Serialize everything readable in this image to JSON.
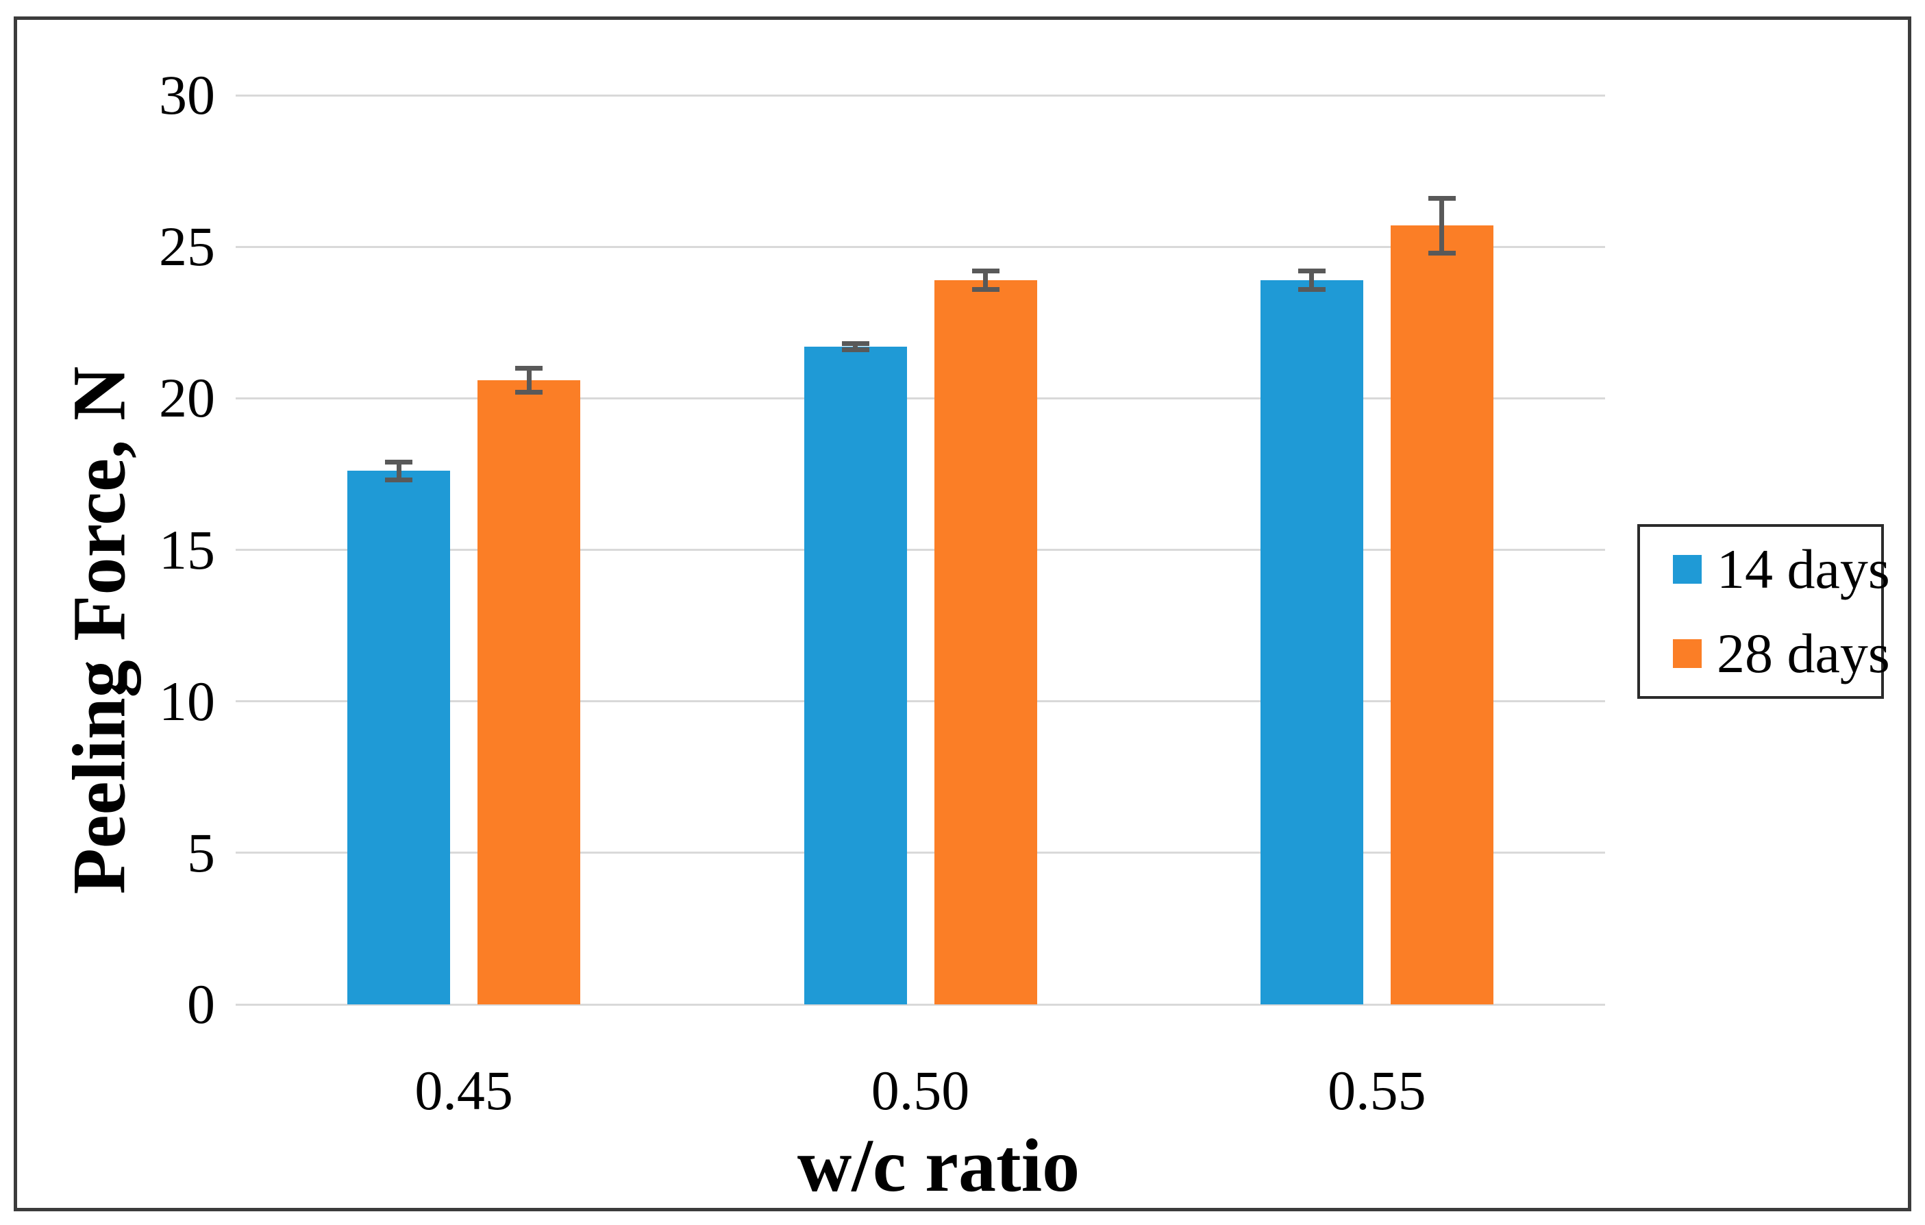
{
  "chart_data": {
    "type": "bar",
    "title": "",
    "categories": [
      "0.45",
      "0.50",
      "0.55"
    ],
    "series": [
      {
        "name": "14 days",
        "color": "#1F9AD6",
        "values": [
          17.6,
          21.7,
          23.9
        ],
        "errors": [
          0.3,
          0.1,
          0.3
        ]
      },
      {
        "name": "28 days",
        "color": "#FB7E26",
        "values": [
          20.6,
          23.9,
          25.7
        ],
        "errors": [
          0.4,
          0.3,
          0.9
        ]
      }
    ],
    "xlabel": "w/c ratio",
    "ylabel": "Peeling Force, N",
    "ylim": [
      0,
      30
    ],
    "ytick_step": 5,
    "yticks": [
      "0",
      "5",
      "10",
      "15",
      "20",
      "25",
      "30"
    ],
    "grid": "horizontal",
    "legend_position": "right",
    "colors": {
      "gridline": "#d9d9d9",
      "error_bar": "#595959",
      "frame_border": "#3c3c3c",
      "legend_border": "#2b2b2b",
      "background": "#ffffff"
    }
  }
}
